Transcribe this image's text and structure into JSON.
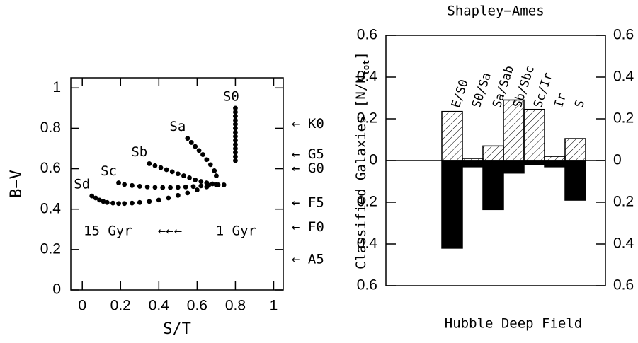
{
  "chart_data": [
    {
      "type": "scatter",
      "xlabel": "S/T",
      "ylabel": "B−V",
      "xlim": [
        -0.06,
        1.05
      ],
      "ylim": [
        0,
        1.05
      ],
      "xticks": [
        0,
        0.2,
        0.4,
        0.6,
        0.8,
        1
      ],
      "yticks": [
        0,
        0.2,
        0.4,
        0.6,
        0.8,
        1
      ],
      "color": "#000000",
      "series": [
        {
          "name": "Sd",
          "x": [
            0.05,
            0.07,
            0.09,
            0.11,
            0.13,
            0.16,
            0.19,
            0.22,
            0.26,
            0.3,
            0.35,
            0.4,
            0.45,
            0.5,
            0.55,
            0.6,
            0.65,
            0.7
          ],
          "values": [
            0.465,
            0.455,
            0.445,
            0.438,
            0.433,
            0.43,
            0.428,
            0.428,
            0.43,
            0.433,
            0.438,
            0.445,
            0.455,
            0.468,
            0.48,
            0.495,
            0.51,
            0.52
          ]
        },
        {
          "name": "Sc",
          "x": [
            0.19,
            0.22,
            0.26,
            0.3,
            0.34,
            0.38,
            0.42,
            0.46,
            0.5,
            0.54,
            0.58,
            0.62,
            0.66,
            0.7,
            0.74
          ],
          "values": [
            0.53,
            0.522,
            0.517,
            0.513,
            0.51,
            0.508,
            0.507,
            0.507,
            0.508,
            0.51,
            0.512,
            0.515,
            0.518,
            0.52,
            0.52
          ]
        },
        {
          "name": "Sb",
          "x": [
            0.35,
            0.38,
            0.41,
            0.44,
            0.47,
            0.5,
            0.53,
            0.56,
            0.59,
            0.62,
            0.65,
            0.68,
            0.71
          ],
          "values": [
            0.625,
            0.615,
            0.605,
            0.595,
            0.585,
            0.575,
            0.565,
            0.555,
            0.545,
            0.537,
            0.53,
            0.525,
            0.52
          ]
        },
        {
          "name": "Sa",
          "x": [
            0.55,
            0.57,
            0.59,
            0.61,
            0.63,
            0.65,
            0.67,
            0.69,
            0.7
          ],
          "values": [
            0.75,
            0.73,
            0.71,
            0.69,
            0.67,
            0.645,
            0.62,
            0.59,
            0.565
          ]
        },
        {
          "name": "S0",
          "x": [
            0.8,
            0.8,
            0.8,
            0.8,
            0.8,
            0.8,
            0.8,
            0.8,
            0.8,
            0.8,
            0.8,
            0.8,
            0.8,
            0.8
          ],
          "values": [
            0.64,
            0.66,
            0.68,
            0.7,
            0.72,
            0.74,
            0.76,
            0.78,
            0.8,
            0.82,
            0.84,
            0.86,
            0.88,
            0.9
          ]
        }
      ],
      "spectral_types": [
        {
          "text": "← K0",
          "y": 0.82
        },
        {
          "text": "← G5",
          "y": 0.67
        },
        {
          "text": "← G0",
          "y": 0.6
        },
        {
          "text": "← F5",
          "y": 0.43
        },
        {
          "text": "← F0",
          "y": 0.31
        },
        {
          "text": "← A5",
          "y": 0.15
        }
      ],
      "age_annotation": [
        "15 Gyr",
        "←←←",
        "1 Gyr"
      ]
    },
    {
      "type": "bar",
      "title": "Shapley−Ames",
      "xlabel": "Hubble Deep Field",
      "ylabel": [
        "Classified Galaxies [N/N",
        "tot",
        "]"
      ],
      "categories": [
        "E/S0",
        "S0/Sa",
        "Sa/Sab",
        "Sb/Sbc",
        "Sc/Ir",
        "Ir",
        "S"
      ],
      "ylim": [
        -0.6,
        0.6
      ],
      "yticks": [
        {
          "value": -0.6,
          "label": "0.6"
        },
        {
          "value": -0.4,
          "label": "0.4"
        },
        {
          "value": -0.2,
          "label": "0.2"
        },
        0,
        0.2,
        0.4,
        0.6
      ],
      "series": [
        {
          "name": "Shapley−Ames",
          "color": "#000000",
          "fill": "hatch",
          "values": [
            0.235,
            0.01,
            0.07,
            0.29,
            0.245,
            0.02,
            0.105
          ]
        },
        {
          "name": "Hubble Deep Field",
          "color": "#000000",
          "fill": "solid",
          "values": [
            -0.42,
            -0.03,
            -0.235,
            -0.06,
            -0.02,
            -0.03,
            -0.19
          ]
        }
      ]
    }
  ]
}
